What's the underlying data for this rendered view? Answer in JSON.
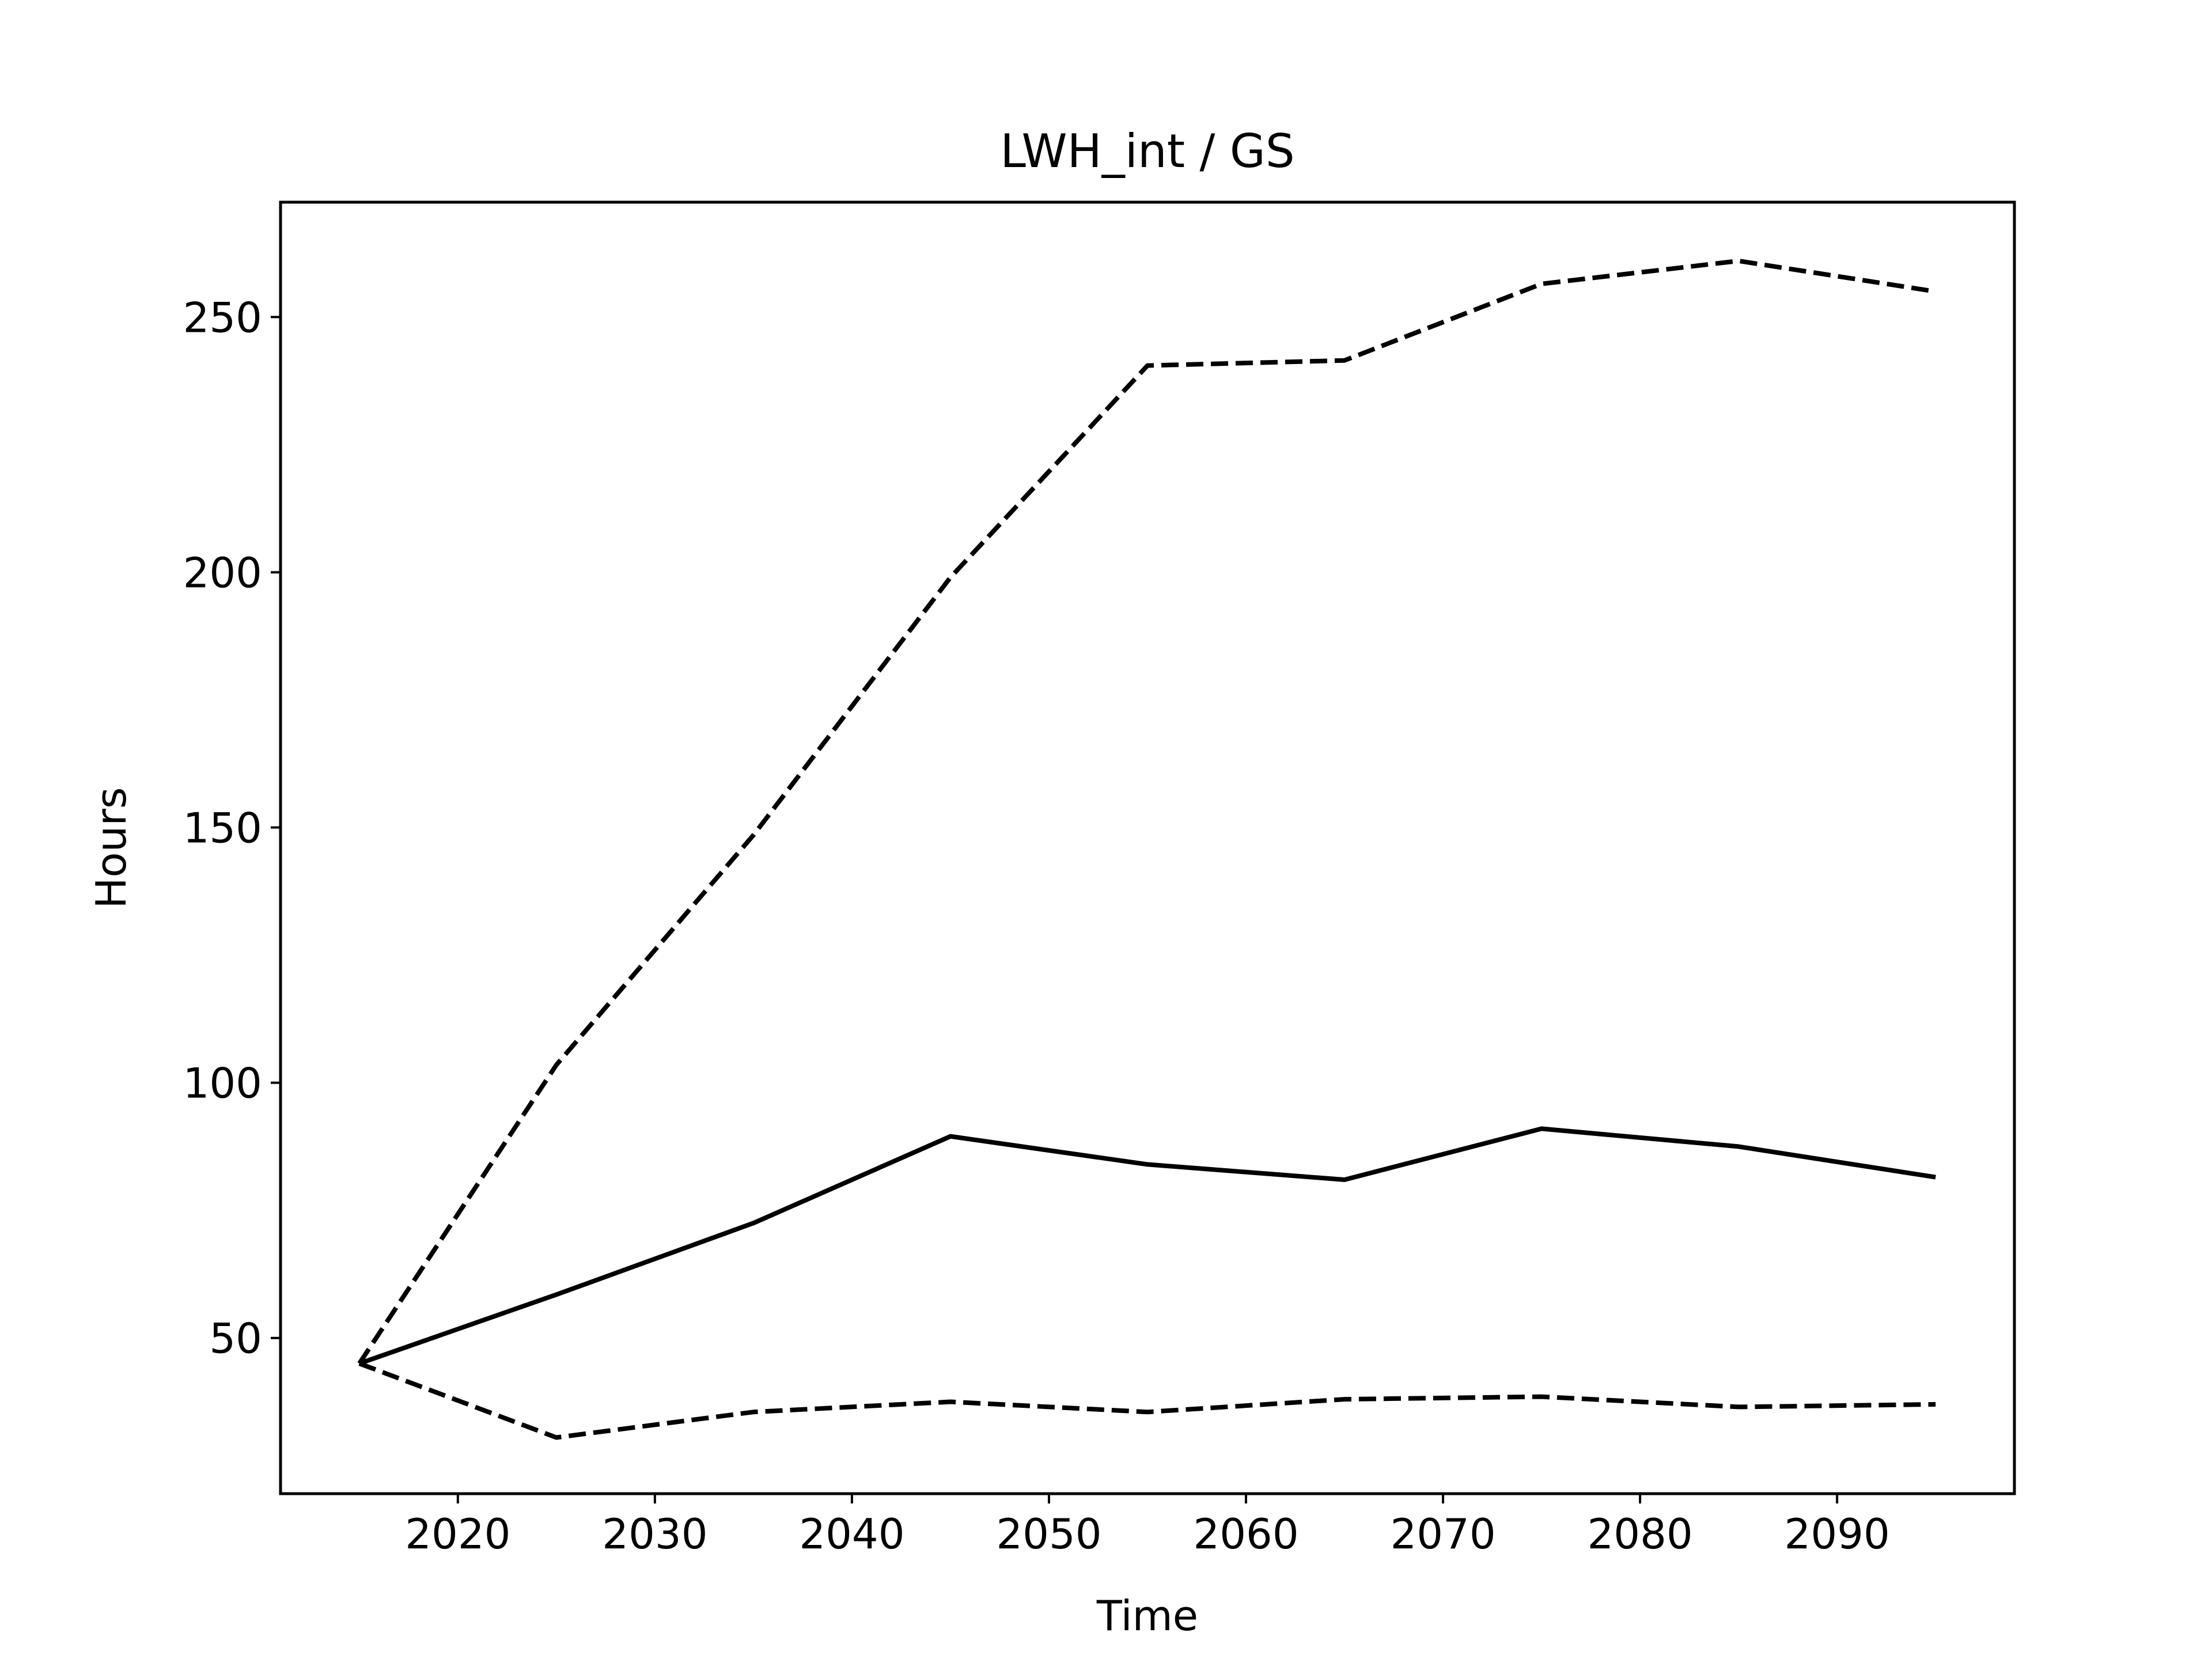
{
  "chart_data": {
    "type": "line",
    "title": "LWH_int / GS",
    "xlabel": "Time",
    "ylabel": "Hours",
    "xlim": [
      2011,
      2099
    ],
    "ylim": [
      19.5,
      272.5
    ],
    "xticks": [
      2020,
      2030,
      2040,
      2050,
      2060,
      2070,
      2080,
      2090
    ],
    "yticks": [
      50,
      100,
      150,
      200,
      250
    ],
    "grid": false,
    "legend": "none",
    "series": [
      {
        "style": "dashed",
        "x": [
          2015,
          2025,
          2035,
          2045,
          2055,
          2065,
          2075,
          2085,
          2095
        ],
        "y": [
          45,
          103.5,
          148.5,
          199,
          240.5,
          241.5,
          256.5,
          261,
          255
        ]
      },
      {
        "style": "solid",
        "x": [
          2015,
          2025,
          2035,
          2045,
          2055,
          2065,
          2075,
          2085,
          2095
        ],
        "y": [
          45,
          58.5,
          72.5,
          89.5,
          84,
          81,
          91,
          87.5,
          81.5
        ]
      },
      {
        "style": "dashed",
        "x": [
          2015,
          2025,
          2035,
          2045,
          2055,
          2065,
          2075,
          2085,
          2095
        ],
        "y": [
          45,
          30.5,
          35.5,
          37.5,
          35.5,
          38,
          38.5,
          36.5,
          37
        ]
      }
    ]
  }
}
